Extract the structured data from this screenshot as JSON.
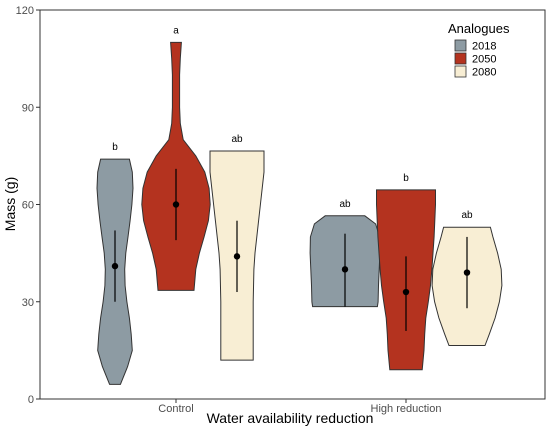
{
  "chart_data": {
    "type": "violin",
    "xlabel": "Water availability reduction",
    "ylabel": "Mass (g)",
    "ylim": [
      0,
      120
    ],
    "yticks": [
      "0",
      "30",
      "60",
      "90",
      "120"
    ],
    "grid": false,
    "legend": {
      "title": "Analogues",
      "placement": "top-right"
    },
    "categories": [
      "Control",
      "High reduction"
    ],
    "series": [
      {
        "name": "2018",
        "color": "#8d9ba3",
        "groups": [
          {
            "category": "Control",
            "letter": "b",
            "min": 4.5,
            "max": 74,
            "mean": 41,
            "lower": 30,
            "upper": 52,
            "density": [
              [
                4.5,
                0.15
              ],
              [
                10,
                0.35
              ],
              [
                15,
                0.48
              ],
              [
                20,
                0.45
              ],
              [
                25,
                0.4
              ],
              [
                30,
                0.33
              ],
              [
                35,
                0.28
              ],
              [
                40,
                0.27
              ],
              [
                45,
                0.3
              ],
              [
                50,
                0.36
              ],
              [
                55,
                0.42
              ],
              [
                60,
                0.47
              ],
              [
                65,
                0.5
              ],
              [
                70,
                0.48
              ],
              [
                74,
                0.4
              ]
            ]
          },
          {
            "category": "High reduction",
            "letter": "ab",
            "min": 28.5,
            "max": 56.5,
            "mean": 40,
            "lower": 28.5,
            "upper": 51,
            "density": [
              [
                28.5,
                0.9
              ],
              [
                30,
                0.92
              ],
              [
                35,
                0.93
              ],
              [
                40,
                0.95
              ],
              [
                45,
                0.97
              ],
              [
                50,
                0.96
              ],
              [
                54,
                0.85
              ],
              [
                56.5,
                0.55
              ]
            ]
          }
        ]
      },
      {
        "name": "2050",
        "color": "#b4331f",
        "groups": [
          {
            "category": "Control",
            "letter": "a",
            "min": 33.5,
            "max": 110,
            "mean": 60,
            "lower": 49,
            "upper": 71,
            "density": [
              [
                33.5,
                0.5
              ],
              [
                40,
                0.55
              ],
              [
                45,
                0.65
              ],
              [
                50,
                0.78
              ],
              [
                55,
                0.9
              ],
              [
                60,
                0.95
              ],
              [
                65,
                0.92
              ],
              [
                70,
                0.8
              ],
              [
                75,
                0.55
              ],
              [
                80,
                0.2
              ],
              [
                85,
                0.12
              ],
              [
                90,
                0.1
              ],
              [
                95,
                0.1
              ],
              [
                100,
                0.1
              ],
              [
                105,
                0.12
              ],
              [
                110,
                0.15
              ]
            ]
          },
          {
            "category": "High reduction",
            "letter": "b",
            "min": 9,
            "max": 64.5,
            "mean": 33,
            "lower": 21,
            "upper": 44,
            "density": [
              [
                9,
                0.45
              ],
              [
                15,
                0.5
              ],
              [
                20,
                0.52
              ],
              [
                25,
                0.55
              ],
              [
                30,
                0.62
              ],
              [
                35,
                0.68
              ],
              [
                40,
                0.72
              ],
              [
                45,
                0.75
              ],
              [
                50,
                0.78
              ],
              [
                55,
                0.8
              ],
              [
                60,
                0.82
              ],
              [
                64.5,
                0.82
              ]
            ]
          }
        ]
      },
      {
        "name": "2080",
        "color": "#f8eed4",
        "groups": [
          {
            "category": "Control",
            "letter": "ab",
            "min": 12,
            "max": 76.5,
            "mean": 44,
            "lower": 33,
            "upper": 55,
            "density": [
              [
                12,
                0.45
              ],
              [
                20,
                0.45
              ],
              [
                30,
                0.45
              ],
              [
                40,
                0.47
              ],
              [
                45,
                0.5
              ],
              [
                50,
                0.55
              ],
              [
                55,
                0.6
              ],
              [
                60,
                0.65
              ],
              [
                65,
                0.7
              ],
              [
                70,
                0.75
              ],
              [
                76.5,
                0.75
              ]
            ]
          },
          {
            "category": "High reduction",
            "letter": "ab",
            "min": 16.5,
            "max": 53,
            "mean": 39,
            "lower": 28,
            "upper": 50,
            "density": [
              [
                16.5,
                0.5
              ],
              [
                20,
                0.62
              ],
              [
                25,
                0.78
              ],
              [
                30,
                0.9
              ],
              [
                35,
                0.97
              ],
              [
                40,
                0.95
              ],
              [
                45,
                0.85
              ],
              [
                50,
                0.72
              ],
              [
                53,
                0.65
              ]
            ]
          }
        ]
      }
    ]
  }
}
